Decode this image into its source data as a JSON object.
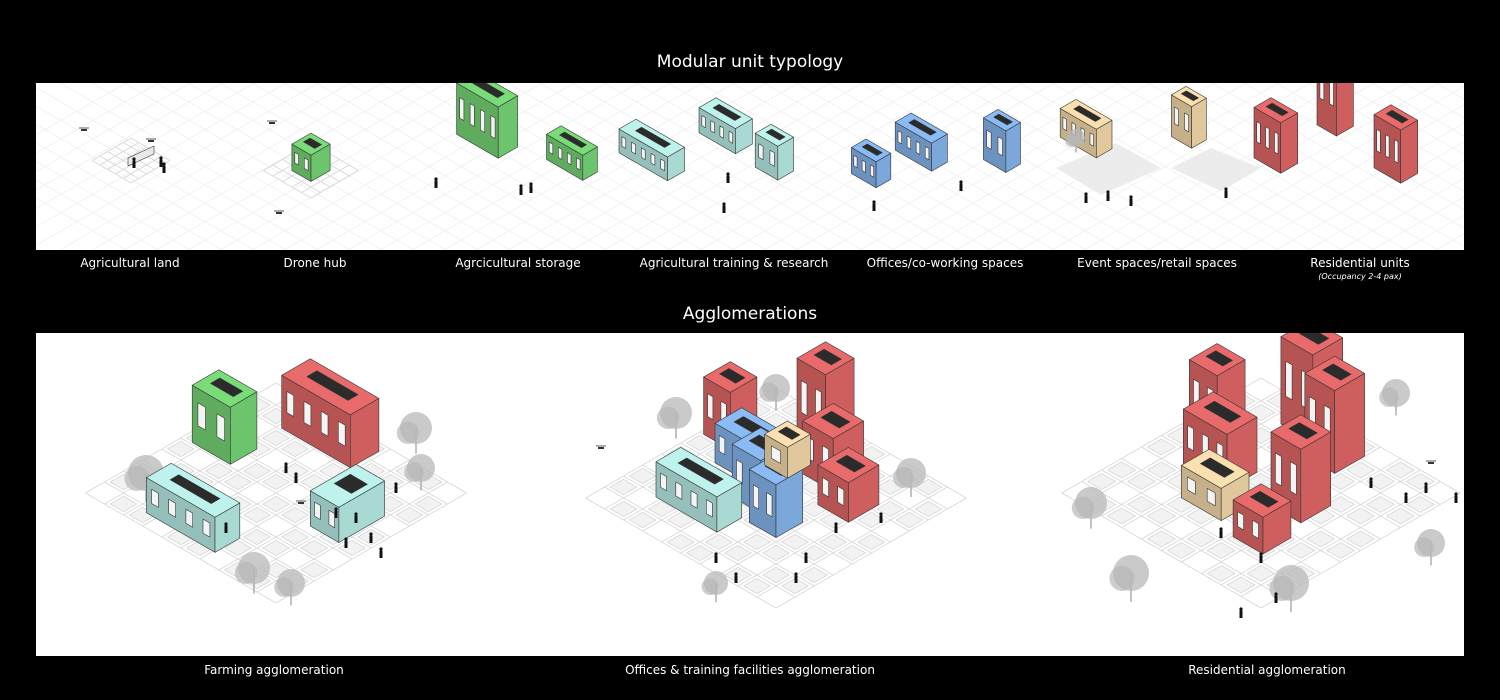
{
  "section_titles": {
    "typology": "Modular unit typology",
    "agglomerations": "Agglomerations"
  },
  "typology_units": [
    {
      "label": "Agricultural land"
    },
    {
      "label": "Drone hub"
    },
    {
      "label": "Agrcicultural storage"
    },
    {
      "label": "Agricultural training & research"
    },
    {
      "label": "Offices/co-working spaces"
    },
    {
      "label": "Event spaces/retail spaces"
    },
    {
      "label": "Residential units",
      "sublabel": "(Occupancy 2-4 pax)"
    }
  ],
  "agglomerations": [
    {
      "label": "Farming agglomeration"
    },
    {
      "label": "Offices & training facilities agglomeration"
    },
    {
      "label": "Residential agglomeration"
    }
  ],
  "colors": {
    "agricultural": "#6cc46c",
    "training": "#a9d9d3",
    "office": "#7ba7da",
    "event": "#e0c89c",
    "residential": "#cf5f5f",
    "tree": "#b8b8b8",
    "grid": "#d6d6d6"
  }
}
